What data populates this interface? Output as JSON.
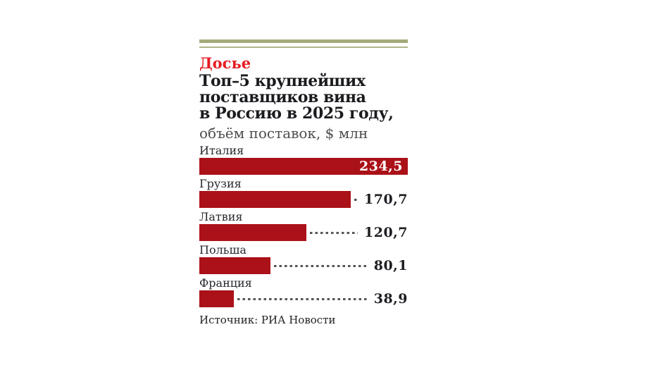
{
  "panel": {
    "kicker": "Досье",
    "title_lines": [
      "Топ–5 крупнейших",
      "поставщиков вина",
      "в Россию в 2025 году,"
    ],
    "subtitle": "объём поставок, $ млн",
    "source": "Источник: РИА Новости"
  },
  "colors": {
    "accent_red": "#e61b23",
    "bar_red": "#ab1118",
    "rule_olive_thick": "#a6aa7b",
    "rule_olive_thin": "#b2b586",
    "title_text": "#1a1b1e",
    "subtitle_text": "#4c4e50",
    "label_text": "#26282d",
    "value_text": "#1d1e22",
    "leader_dash": "#55555a",
    "background": "#ffffff"
  },
  "chart_data": {
    "type": "bar",
    "orientation": "horizontal",
    "title": "Топ–5 крупнейших поставщиков вина в Россию в 2025 году",
    "subtitle": "объём поставок, $ млн",
    "unit": "$ млн",
    "categories": [
      "Италия",
      "Грузия",
      "Латвия",
      "Польша",
      "Франция"
    ],
    "values": [
      234.5,
      170.7,
      120.7,
      80.1,
      38.9
    ],
    "value_labels": [
      "234,5",
      "170,7",
      "120,7",
      "80,1",
      "38,9"
    ],
    "xlim": [
      0,
      234.5
    ],
    "grid": false,
    "legend": false,
    "bar_color": "#ab1118",
    "source": "Источник: РИА Новости"
  }
}
